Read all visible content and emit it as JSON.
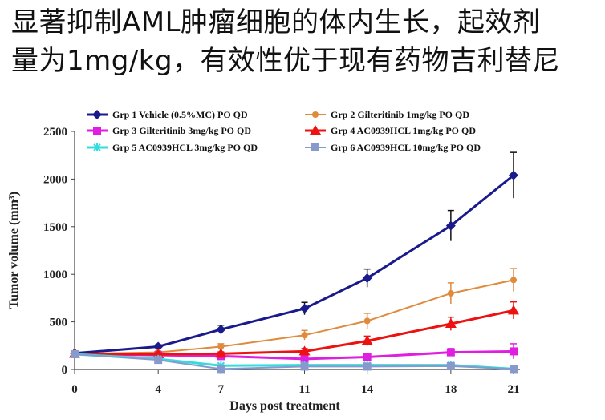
{
  "headline": {
    "line1": "显著抑制AML肿瘤细胞的体内生长，起效剂",
    "line2": "量为1mg/kg，有效性优于现有药物吉利替尼"
  },
  "chart_data": {
    "type": "line",
    "xlabel": "Days post treatment",
    "ylabel": "Tumor volume (mm³)",
    "xlim": [
      0,
      21
    ],
    "ylim": [
      0,
      2500
    ],
    "x_ticks": [
      0,
      4,
      7,
      11,
      14,
      18,
      21
    ],
    "y_ticks": [
      0,
      500,
      1000,
      1500,
      2000,
      2500
    ],
    "legend_position": "top",
    "grid": false,
    "x": [
      0,
      4,
      7,
      11,
      14,
      18,
      21
    ],
    "series": [
      {
        "name": "Grp 1  Vehicle (0.5%MC) PO QD",
        "color": "#1a1a8c",
        "marker": "diamond",
        "width": 3,
        "values": [
          170,
          240,
          420,
          640,
          960,
          1510,
          2040
        ],
        "errors": [
          15,
          20,
          45,
          65,
          95,
          160,
          240
        ]
      },
      {
        "name": "Grp 2  Gilteritinib 1mg/kg PO QD",
        "color": "#e08a3c",
        "marker": "circle",
        "width": 2,
        "values": [
          165,
          180,
          240,
          360,
          510,
          800,
          940
        ],
        "errors": [
          10,
          15,
          30,
          50,
          80,
          110,
          120
        ]
      },
      {
        "name": "Grp 3  Gilteritinib 3mg/kg PO QD",
        "color": "#e01ee0",
        "marker": "square",
        "width": 3,
        "values": [
          160,
          150,
          140,
          110,
          130,
          180,
          190
        ],
        "errors": [
          10,
          15,
          20,
          20,
          30,
          40,
          80
        ]
      },
      {
        "name": "Grp 4 AC0939HCL 1mg/kg PO QD",
        "color": "#ee1111",
        "marker": "triangle",
        "width": 3,
        "values": [
          165,
          160,
          165,
          190,
          300,
          480,
          620
        ],
        "errors": [
          10,
          15,
          20,
          30,
          50,
          70,
          90
        ]
      },
      {
        "name": "Grp 5 AC0939HCL 3mg/kg PO QD",
        "color": "#33dddd",
        "marker": "star",
        "width": 3,
        "values": [
          160,
          110,
          40,
          45,
          45,
          45,
          5
        ],
        "errors": [
          10,
          10,
          8,
          8,
          8,
          8,
          3
        ]
      },
      {
        "name": "Grp 6 AC0939HCL 10mg/kg PO QD",
        "color": "#8899cc",
        "marker": "square",
        "width": 2,
        "values": [
          160,
          100,
          5,
          30,
          30,
          35,
          5
        ],
        "errors": [
          10,
          10,
          3,
          8,
          8,
          8,
          3
        ]
      }
    ]
  }
}
